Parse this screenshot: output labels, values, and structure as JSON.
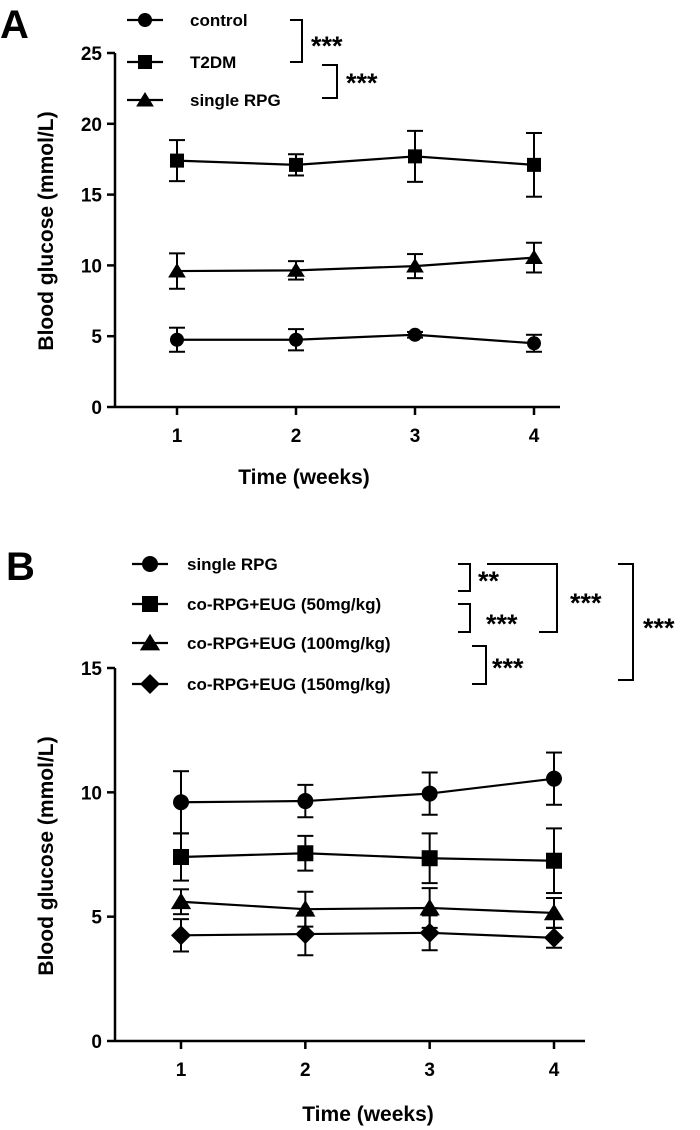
{
  "chart_data": [
    {
      "type": "line",
      "panel_label": "A",
      "xlabel": "Time (weeks)",
      "ylabel": "Blood glucose (mmol/L)",
      "x": [
        1,
        2,
        3,
        4
      ],
      "xticks": [
        "1",
        "2",
        "3",
        "4"
      ],
      "yticks": [
        "0",
        "5",
        "10",
        "15",
        "20",
        "25"
      ],
      "ylim": [
        0,
        25
      ],
      "grid": false,
      "legend_position": "top-left",
      "series": [
        {
          "name": "control",
          "marker": "circle",
          "values": [
            4.75,
            4.75,
            5.1,
            4.5
          ],
          "errors": [
            0.85,
            0.75,
            0.2,
            0.6
          ]
        },
        {
          "name": "T2DM",
          "marker": "square",
          "values": [
            17.4,
            17.1,
            17.7,
            17.1
          ],
          "errors": [
            1.45,
            0.75,
            1.8,
            2.25
          ]
        },
        {
          "name": "single RPG",
          "marker": "triangle",
          "values": [
            9.6,
            9.65,
            9.95,
            10.55
          ],
          "errors": [
            1.25,
            0.65,
            0.85,
            1.05
          ]
        }
      ],
      "significance": [
        {
          "label": "***",
          "between": [
            "control",
            "T2DM"
          ]
        },
        {
          "label": "***",
          "between": [
            "T2DM",
            "single RPG"
          ]
        }
      ]
    },
    {
      "type": "line",
      "panel_label": "B",
      "xlabel": "Time (weeks)",
      "ylabel": "Blood glucose (mmol/L)",
      "x": [
        1,
        2,
        3,
        4
      ],
      "xticks": [
        "1",
        "2",
        "3",
        "4"
      ],
      "yticks": [
        "0",
        "5",
        "10",
        "15"
      ],
      "ylim": [
        0,
        15
      ],
      "grid": false,
      "legend_position": "top-left",
      "series": [
        {
          "name": "single RPG",
          "marker": "circle",
          "values": [
            9.6,
            9.65,
            9.95,
            10.55
          ],
          "errors": [
            1.25,
            0.65,
            0.85,
            1.05
          ]
        },
        {
          "name": "co-RPG+EUG (50mg/kg)",
          "marker": "square",
          "values": [
            7.4,
            7.55,
            7.35,
            7.25
          ],
          "errors": [
            0.95,
            0.7,
            1.0,
            1.3
          ]
        },
        {
          "name": "co-RPG+EUG (100mg/kg)",
          "marker": "triangle",
          "values": [
            5.6,
            5.3,
            5.35,
            5.15
          ],
          "errors": [
            0.5,
            0.7,
            0.8,
            0.6
          ]
        },
        {
          "name": "co-RPG+EUG (150mg/kg)",
          "marker": "diamond",
          "values": [
            4.25,
            4.3,
            4.35,
            4.15
          ],
          "errors": [
            0.65,
            0.85,
            0.7,
            0.4
          ]
        }
      ],
      "significance": [
        {
          "label": "**",
          "between": [
            "single RPG",
            "co-RPG+EUG (50mg/kg)"
          ]
        },
        {
          "label": "***",
          "between": [
            "co-RPG+EUG (50mg/kg)",
            "co-RPG+EUG (100mg/kg)"
          ]
        },
        {
          "label": "***",
          "between": [
            "co-RPG+EUG (100mg/kg)",
            "co-RPG+EUG (150mg/kg)"
          ]
        },
        {
          "label": "***",
          "between": [
            "single RPG",
            "co-RPG+EUG (100mg/kg)"
          ]
        },
        {
          "label": "***",
          "between": [
            "single RPG",
            "co-RPG+EUG (150mg/kg)"
          ]
        }
      ]
    }
  ]
}
